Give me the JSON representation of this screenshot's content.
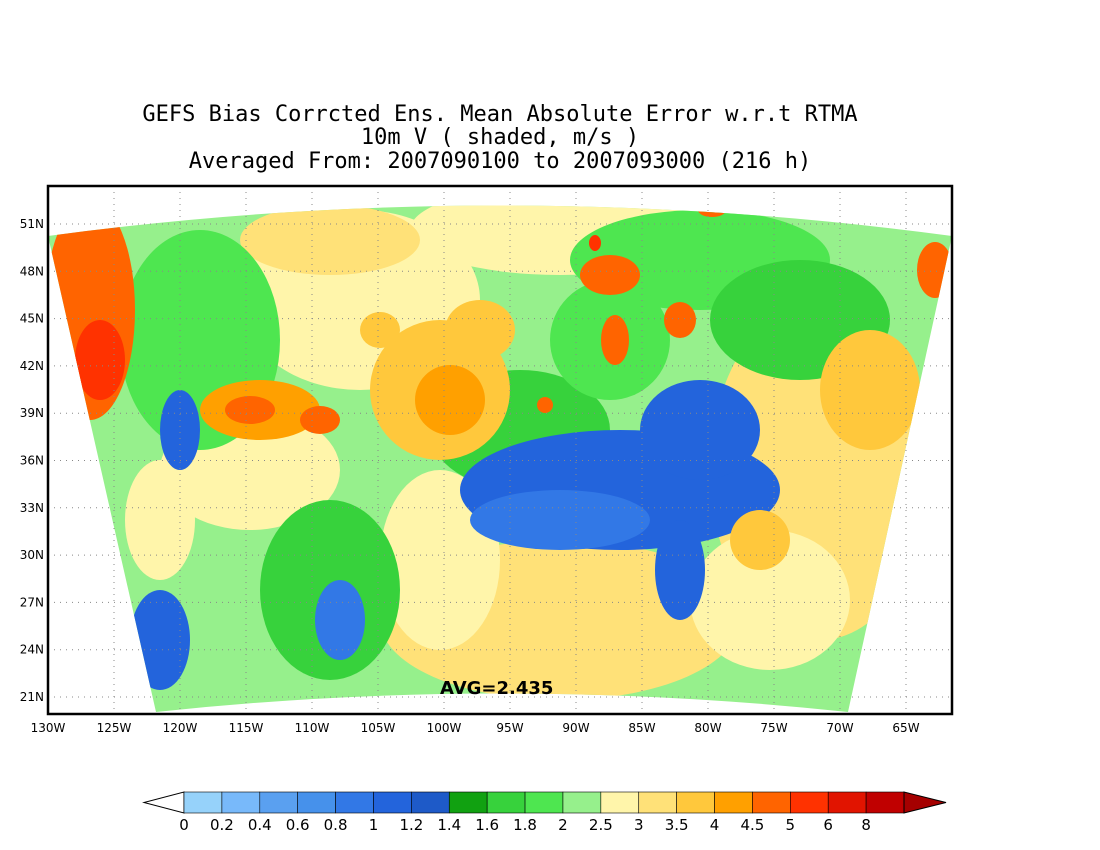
{
  "title": {
    "line1": "GEFS Bias Corrcted Ens. Mean Absolute Error w.r.t RTMA",
    "line2": "10m V ( shaded, m/s )",
    "line3": "Averaged From: 2007090100 to 2007093000 (216 h)"
  },
  "map": {
    "region": "continental-united-states",
    "lon_ticks": [
      "130W",
      "125W",
      "120W",
      "115W",
      "110W",
      "105W",
      "100W",
      "95W",
      "90W",
      "85W",
      "80W",
      "75W",
      "70W",
      "65W"
    ],
    "lat_ticks": [
      "51N",
      "48N",
      "45N",
      "42N",
      "39N",
      "36N",
      "33N",
      "30N",
      "27N",
      "24N",
      "21N"
    ],
    "grid_lines": "dotted",
    "average_label": "AVG=2.435",
    "average_value": 2.435,
    "units": "m/s",
    "field_summary": {
      "high_error_regions": [
        "pacific-coast",
        "great-lakes",
        "central-high-plains",
        "atlantic-offshore"
      ],
      "low_error_regions": [
        "southeast-us",
        "mississippi-valley",
        "gulf-of-california"
      ]
    }
  },
  "colorbar": {
    "labels": [
      "0",
      "0.2",
      "0.4",
      "0.6",
      "0.8",
      "1",
      "1.2",
      "1.4",
      "1.6",
      "1.8",
      "2",
      "2.5",
      "3",
      "3.5",
      "4",
      "4.5",
      "5",
      "6",
      "8"
    ],
    "colors": [
      "#96d2fa",
      "#78b9fa",
      "#5aa0f0",
      "#4691eb",
      "#3278e6",
      "#2364dc",
      "#1e5ac8",
      "#11a111",
      "#37d23c",
      "#4ee650",
      "#96f08c",
      "#fff5aa",
      "#ffe178",
      "#ffc83c",
      "#ffa000",
      "#ff6400",
      "#ff3200",
      "#e11400",
      "#c00000"
    ],
    "under_color": "#ffffff",
    "over_color": "#a50000"
  }
}
